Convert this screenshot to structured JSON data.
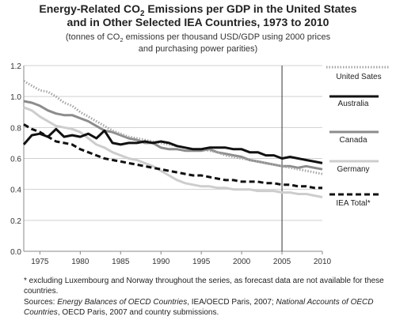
{
  "chart_data": {
    "type": "line",
    "title_prefix": "Energy-Related CO",
    "title_sub": "2",
    "title_suffix": " Emissions per GDP in the United States",
    "title_line2": "and in Other Selected IEA Countries, 1973 to 2010",
    "subtitle_prefix": "(tonnes of CO",
    "subtitle_sub": "2",
    "subtitle_suffix": "  emissions per thousand USD/GDP using 2000 prices",
    "subtitle_line2": "and purchasing power parities)",
    "xlim": [
      1973,
      2010
    ],
    "ylim": [
      0,
      1.2
    ],
    "x_ticks": [
      1975,
      1980,
      1985,
      1990,
      1995,
      2000,
      2005,
      2010
    ],
    "y_ticks": [
      "0.0",
      "0.2",
      "0.4",
      "0.6",
      "0.8",
      "1.0",
      "1.2"
    ],
    "y_tick_values": [
      0,
      0.2,
      0.4,
      0.6,
      0.8,
      1.0,
      1.2
    ],
    "grid": true,
    "forecast_marker_year": 2005,
    "legend_position": "right",
    "series": [
      {
        "name": "United Sates",
        "color": "#a6a6a6",
        "style": "dotted",
        "x": [
          1973,
          1974,
          1975,
          1976,
          1977,
          1978,
          1979,
          1980,
          1981,
          1982,
          1983,
          1984,
          1985,
          1986,
          1987,
          1988,
          1989,
          1990,
          1991,
          1992,
          1993,
          1994,
          1995,
          1996,
          1997,
          1998,
          1999,
          2000,
          2001,
          2002,
          2003,
          2004,
          2005,
          2006,
          2007,
          2008,
          2009,
          2010
        ],
        "values": [
          1.1,
          1.07,
          1.04,
          1.03,
          1.0,
          0.96,
          0.94,
          0.9,
          0.87,
          0.84,
          0.81,
          0.78,
          0.76,
          0.74,
          0.73,
          0.72,
          0.71,
          0.7,
          0.69,
          0.68,
          0.67,
          0.66,
          0.66,
          0.65,
          0.64,
          0.62,
          0.61,
          0.6,
          0.59,
          0.58,
          0.57,
          0.56,
          0.55,
          0.54,
          0.53,
          0.52,
          0.51,
          0.5
        ]
      },
      {
        "name": "Australia",
        "color": "#111111",
        "style": "solid",
        "x": [
          1973,
          1974,
          1975,
          1976,
          1977,
          1978,
          1979,
          1980,
          1981,
          1982,
          1983,
          1984,
          1985,
          1986,
          1987,
          1988,
          1989,
          1990,
          1991,
          1992,
          1993,
          1994,
          1995,
          1996,
          1997,
          1998,
          1999,
          2000,
          2001,
          2002,
          2003,
          2004,
          2005,
          2006,
          2007,
          2008,
          2009,
          2010
        ],
        "values": [
          0.69,
          0.75,
          0.76,
          0.74,
          0.79,
          0.74,
          0.75,
          0.74,
          0.76,
          0.73,
          0.78,
          0.7,
          0.69,
          0.7,
          0.7,
          0.71,
          0.7,
          0.71,
          0.7,
          0.68,
          0.67,
          0.66,
          0.66,
          0.67,
          0.67,
          0.67,
          0.66,
          0.66,
          0.64,
          0.64,
          0.62,
          0.62,
          0.6,
          0.61,
          0.6,
          0.59,
          0.58,
          0.57
        ]
      },
      {
        "name": "Canada",
        "color": "#8c8c8c",
        "style": "solid",
        "x": [
          1973,
          1974,
          1975,
          1976,
          1977,
          1978,
          1979,
          1980,
          1981,
          1982,
          1983,
          1984,
          1985,
          1986,
          1987,
          1988,
          1989,
          1990,
          1991,
          1992,
          1993,
          1994,
          1995,
          1996,
          1997,
          1998,
          1999,
          2000,
          2001,
          2002,
          2003,
          2004,
          2005,
          2006,
          2007,
          2008,
          2009,
          2010
        ],
        "values": [
          0.97,
          0.96,
          0.94,
          0.91,
          0.89,
          0.88,
          0.88,
          0.86,
          0.84,
          0.81,
          0.78,
          0.77,
          0.75,
          0.73,
          0.72,
          0.7,
          0.7,
          0.67,
          0.66,
          0.66,
          0.65,
          0.65,
          0.65,
          0.66,
          0.64,
          0.63,
          0.62,
          0.61,
          0.59,
          0.58,
          0.57,
          0.56,
          0.55,
          0.55,
          0.54,
          0.55,
          0.54,
          0.53
        ]
      },
      {
        "name": "Germany",
        "color": "#cdcdcd",
        "style": "solid",
        "x": [
          1973,
          1974,
          1975,
          1976,
          1977,
          1978,
          1979,
          1980,
          1981,
          1982,
          1983,
          1984,
          1985,
          1986,
          1987,
          1988,
          1989,
          1990,
          1991,
          1992,
          1993,
          1994,
          1995,
          1996,
          1997,
          1998,
          1999,
          2000,
          2001,
          2002,
          2003,
          2004,
          2005,
          2006,
          2007,
          2008,
          2009,
          2010
        ],
        "values": [
          0.93,
          0.91,
          0.87,
          0.84,
          0.81,
          0.8,
          0.79,
          0.77,
          0.73,
          0.69,
          0.67,
          0.64,
          0.62,
          0.6,
          0.59,
          0.57,
          0.55,
          0.52,
          0.49,
          0.46,
          0.44,
          0.43,
          0.42,
          0.42,
          0.41,
          0.41,
          0.4,
          0.4,
          0.4,
          0.39,
          0.39,
          0.39,
          0.38,
          0.38,
          0.37,
          0.37,
          0.36,
          0.35
        ]
      },
      {
        "name": "IEA Total*",
        "color": "#111111",
        "style": "dashed",
        "x": [
          1973,
          1974,
          1975,
          1976,
          1977,
          1978,
          1979,
          1980,
          1981,
          1982,
          1983,
          1984,
          1985,
          1986,
          1987,
          1988,
          1989,
          1990,
          1991,
          1992,
          1993,
          1994,
          1995,
          1996,
          1997,
          1998,
          1999,
          2000,
          2001,
          2002,
          2003,
          2004,
          2005,
          2006,
          2007,
          2008,
          2009,
          2010
        ],
        "values": [
          0.82,
          0.79,
          0.77,
          0.74,
          0.71,
          0.7,
          0.69,
          0.66,
          0.64,
          0.62,
          0.6,
          0.59,
          0.58,
          0.57,
          0.56,
          0.55,
          0.54,
          0.53,
          0.52,
          0.51,
          0.5,
          0.49,
          0.49,
          0.48,
          0.47,
          0.46,
          0.46,
          0.45,
          0.45,
          0.45,
          0.44,
          0.44,
          0.43,
          0.43,
          0.42,
          0.42,
          0.41,
          0.41
        ]
      }
    ]
  },
  "footnotes": {
    "note": "* excluding Luxembourg and Norway throughout the series, as forecast data are not available for these countries.",
    "sources_label": "Sources:",
    "source_1": "Energy Balances of OECD Countries",
    "source_1_rest": ", IEA/OECD Paris, 2007; ",
    "source_2": "National Accounts of OECD Countries",
    "source_2_rest": ", OECD Paris, 2007 and country submissions."
  }
}
